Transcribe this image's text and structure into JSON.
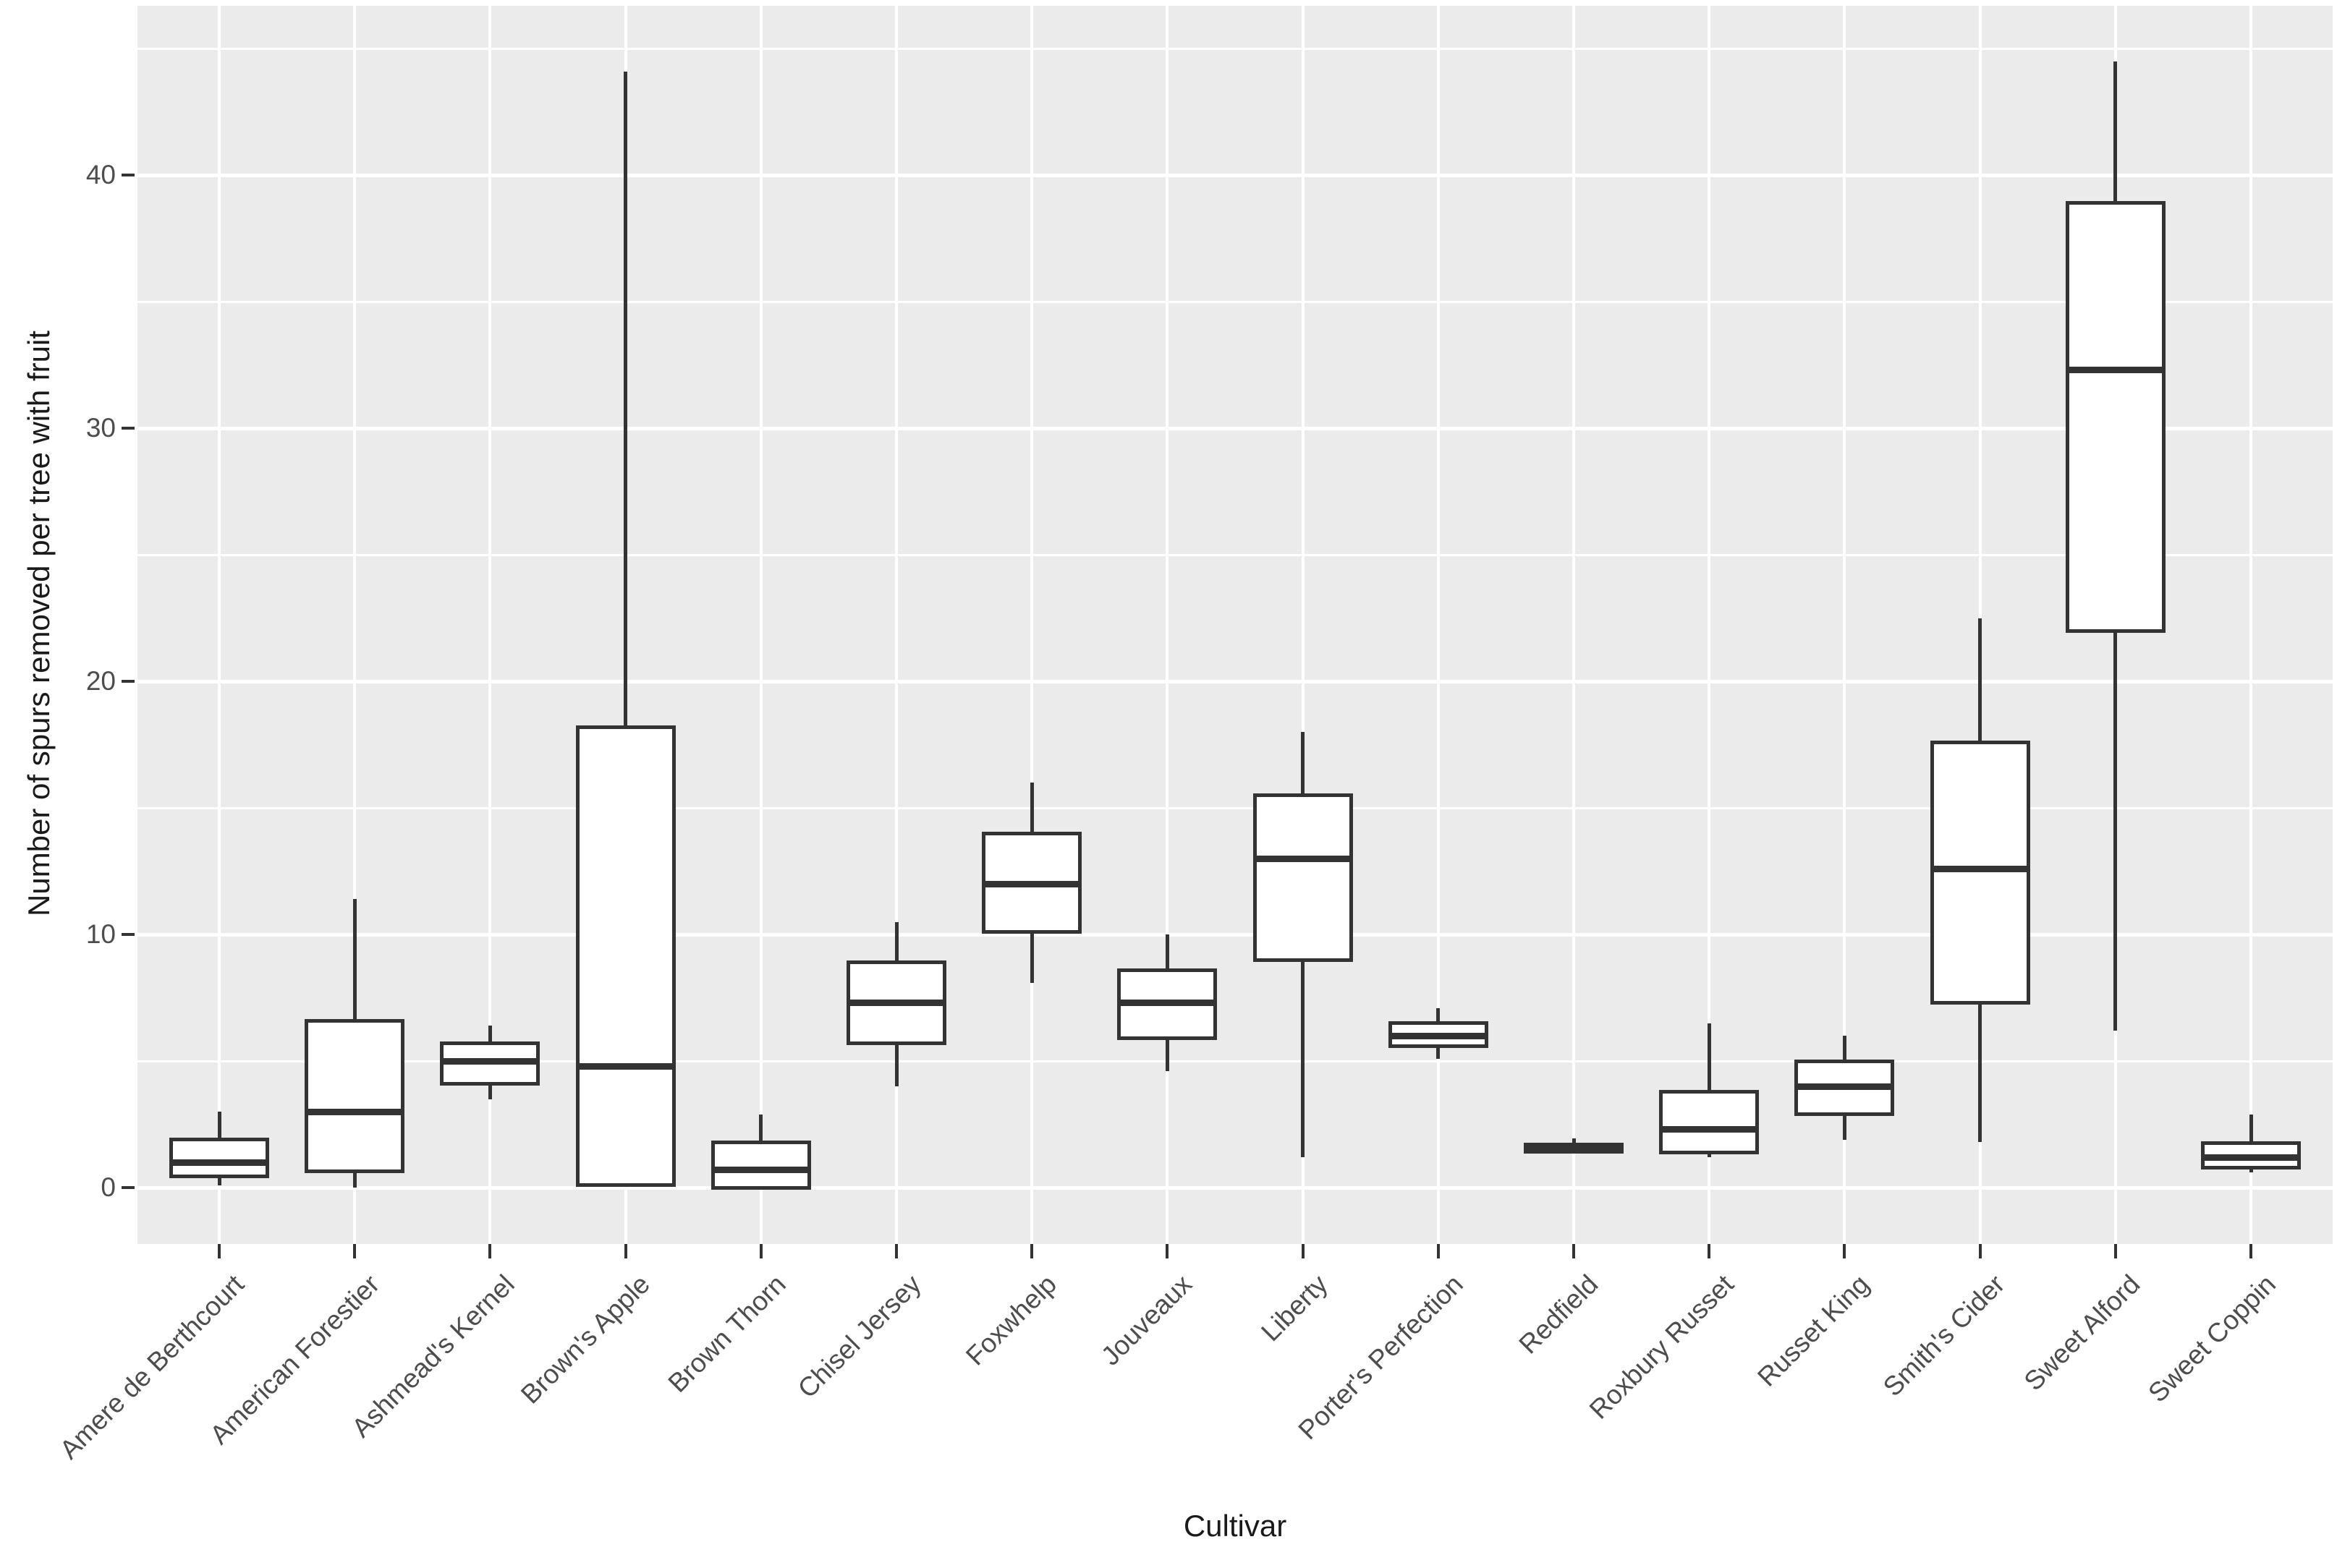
{
  "chart_data": {
    "type": "boxplot",
    "title": "",
    "xlabel": "Cultivar",
    "ylabel": "Number of spurs removed per tree with fruit",
    "ylim": [
      -2.2,
      46.7
    ],
    "yticks": [
      0,
      10,
      20,
      30,
      40
    ],
    "yminor": [
      5,
      15,
      25,
      35,
      45
    ],
    "grid": true,
    "legend": "none",
    "panel_color": "#EBEBEB",
    "gridline_color": "#FFFFFF",
    "box_stroke_color": "#333333",
    "box_fill_color": "#FFFFFF",
    "categories": [
      "Amere de Berthcourt",
      "American Forestier",
      "Ashmead's Kernel",
      "Brown's Apple",
      "Brown Thorn",
      "Chisel Jersey",
      "Foxwhelp",
      "Jouveaux",
      "Liberty",
      "Porter's Perfection",
      "Redfield",
      "Roxbury Russet",
      "Russet King",
      "Smith's Cider",
      "Sweet Alford",
      "Sweet Coppin"
    ],
    "boxes": [
      {
        "cultivar": "Amere de Berthcourt",
        "min": 0.1,
        "q1": 0.45,
        "median": 1.0,
        "q3": 1.9,
        "max": 3.0
      },
      {
        "cultivar": "American Forestier",
        "min": 0.0,
        "q1": 0.65,
        "median": 3.0,
        "q3": 6.6,
        "max": 11.4
      },
      {
        "cultivar": "Ashmead's Kernel",
        "min": 3.5,
        "q1": 4.1,
        "median": 5.0,
        "q3": 5.7,
        "max": 6.4
      },
      {
        "cultivar": "Brown's Apple",
        "min": 0.1,
        "q1": 0.1,
        "median": 4.8,
        "q3": 18.2,
        "max": 44.1
      },
      {
        "cultivar": "Brown Thorn",
        "min": 0.0,
        "q1": 0.0,
        "median": 0.7,
        "q3": 1.8,
        "max": 2.9
      },
      {
        "cultivar": "Chisel Jersey",
        "min": 4.0,
        "q1": 5.7,
        "median": 7.3,
        "q3": 8.9,
        "max": 10.5
      },
      {
        "cultivar": "Foxwhelp",
        "min": 8.1,
        "q1": 10.1,
        "median": 12.0,
        "q3": 14.0,
        "max": 16.0
      },
      {
        "cultivar": "Jouveaux",
        "min": 4.6,
        "q1": 5.9,
        "median": 7.3,
        "q3": 8.6,
        "max": 10.0
      },
      {
        "cultivar": "Liberty",
        "min": 1.2,
        "q1": 9.0,
        "median": 13.0,
        "q3": 15.5,
        "max": 18.0
      },
      {
        "cultivar": "Porter's Perfection",
        "min": 5.1,
        "q1": 5.6,
        "median": 6.0,
        "q3": 6.5,
        "max": 7.1
      },
      {
        "cultivar": "Redfield",
        "min": 1.45,
        "q1": 1.55,
        "median": 1.6,
        "q3": 1.7,
        "max": 1.95
      },
      {
        "cultivar": "Roxbury Russet",
        "min": 1.2,
        "q1": 1.4,
        "median": 2.3,
        "q3": 3.8,
        "max": 6.5
      },
      {
        "cultivar": "Russet King",
        "min": 1.9,
        "q1": 2.9,
        "median": 4.0,
        "q3": 5.0,
        "max": 6.0
      },
      {
        "cultivar": "Smith's Cider",
        "min": 1.8,
        "q1": 7.3,
        "median": 12.6,
        "q3": 17.6,
        "max": 22.5
      },
      {
        "cultivar": "Sweet Alford",
        "min": 6.2,
        "q1": 22.0,
        "median": 32.3,
        "q3": 38.9,
        "max": 44.5
      },
      {
        "cultivar": "Sweet Coppin",
        "min": 0.6,
        "q1": 0.8,
        "median": 1.2,
        "q3": 1.75,
        "max": 2.9
      }
    ]
  }
}
